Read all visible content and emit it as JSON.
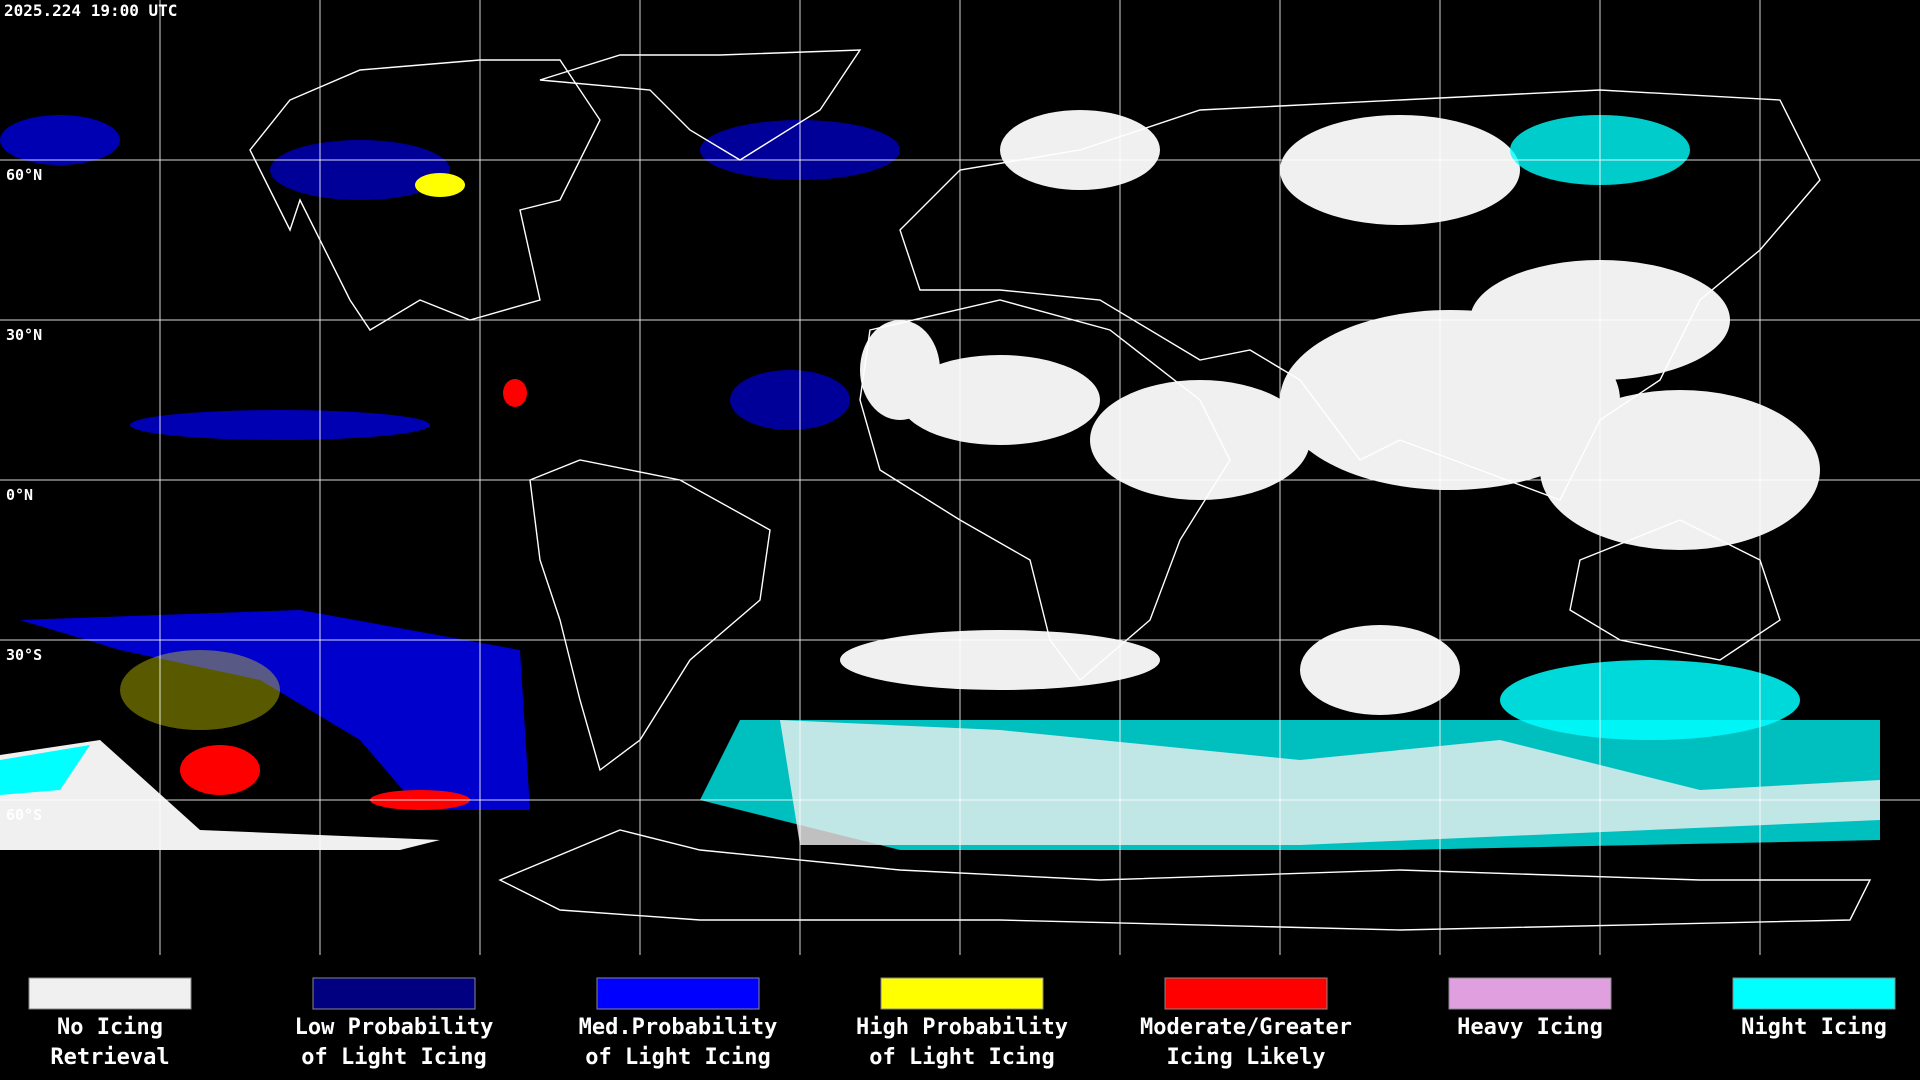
{
  "timestamp": "2025.224 19:00 UTC",
  "latitude_labels": [
    "60°N",
    "30°N",
    "0°N",
    "30°S",
    "60°S"
  ],
  "legend": [
    {
      "lines": [
        "No Icing",
        "Retrieval"
      ],
      "color": "#f0f0f0"
    },
    {
      "lines": [
        "Low Probability",
        "of Light Icing"
      ],
      "color": "#000080"
    },
    {
      "lines": [
        "Med.Probability",
        "of Light Icing"
      ],
      "color": "#0000ff"
    },
    {
      "lines": [
        "High Probability",
        "of Light Icing"
      ],
      "color": "#ffff00"
    },
    {
      "lines": [
        "Moderate/Greater",
        "Icing Likely"
      ],
      "color": "#ff0000"
    },
    {
      "lines": [
        "Heavy Icing"
      ],
      "color": "#e0a0e0"
    },
    {
      "lines": [
        "Night Icing"
      ],
      "color": "#00ffff"
    }
  ]
}
